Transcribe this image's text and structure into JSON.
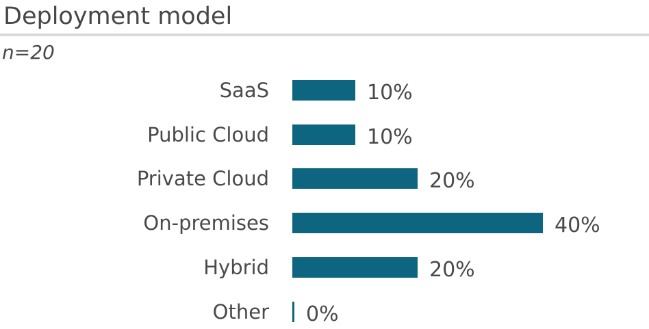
{
  "header": {
    "title": "Deployment model",
    "sample_size": "n=20"
  },
  "chart_data": {
    "type": "bar",
    "orientation": "horizontal",
    "title": "Deployment model",
    "subtitle": "n=20",
    "categories": [
      "SaaS",
      "Public Cloud",
      "Private Cloud",
      "On-premises",
      "Hybrid",
      "Other"
    ],
    "values": [
      10,
      10,
      20,
      40,
      20,
      0
    ],
    "value_labels": [
      "10%",
      "10%",
      "20%",
      "40%",
      "20%",
      "0%"
    ],
    "unit": "%",
    "xlim": [
      0,
      40
    ],
    "grid": false,
    "legend": false,
    "axis_labels": "category names left, percentage data labels right of bars"
  },
  "colors": {
    "bar": "#0d6580",
    "text": "#4a4a4a",
    "title": "#474747",
    "divider": "#d9d9d9",
    "background": "#ffffff"
  }
}
